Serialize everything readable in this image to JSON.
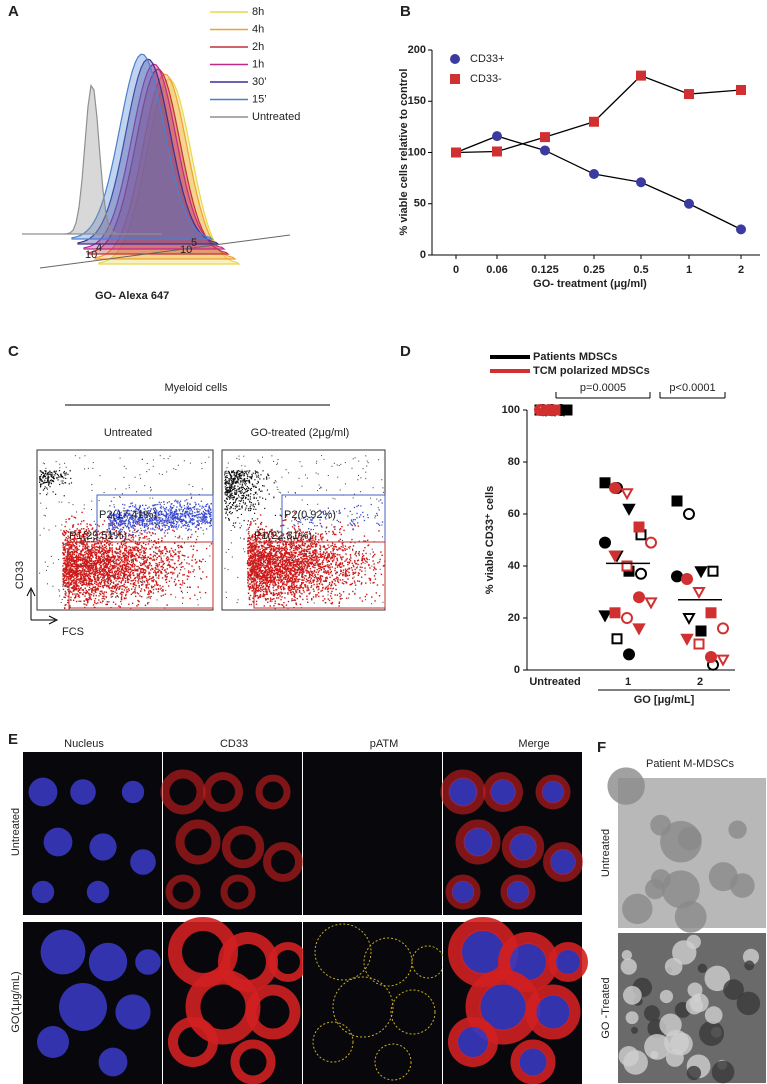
{
  "panels": {
    "A": {
      "letter": "A",
      "xlabel": "GO- Alexa 647",
      "xtick_a": "10",
      "xtick_a_exp": "4",
      "xtick_b": "10",
      "xtick_b_exp": "5",
      "legend": [
        {
          "name": "8h",
          "color": "#e8d84a"
        },
        {
          "name": "4h",
          "color": "#f0a030"
        },
        {
          "name": "2h",
          "color": "#c0303a"
        },
        {
          "name": "1h",
          "color": "#c0288a"
        },
        {
          "name": "30’",
          "color": "#3a3090"
        },
        {
          "name": "15’",
          "color": "#4a80d0"
        },
        {
          "name": "Untreated",
          "color": "#909090"
        }
      ]
    },
    "B": {
      "letter": "B"
    },
    "C": {
      "letter": "C",
      "title": "Myeloid cells",
      "left": "Untreated",
      "right": "GO-treated (2μg/ml)",
      "ylabel": "CD33",
      "xlabel": "FCS",
      "gates": [
        "P2(17.41%)",
        "P1(29.51%)",
        "P2(0.92%)",
        "P1(22.81%)"
      ]
    },
    "D": {
      "letter": "D"
    },
    "E": {
      "letter": "E",
      "columns": [
        "Nucleus",
        "CD33",
        "pATM",
        "Merge"
      ],
      "rows": [
        "Untreated",
        "GO(1μg/mL)"
      ]
    },
    "F": {
      "letter": "F",
      "title": "Patient M-MDSCs",
      "rows": [
        "Untreated",
        "GO -Treated"
      ]
    }
  },
  "chart_data": [
    {
      "type": "line",
      "ylabel": "% viable cells relative to control",
      "xlabel": "GO- treatment (μg/ml)",
      "categories": [
        "0",
        "0.06",
        "0.125",
        "0.25",
        "0.5",
        "1",
        "2"
      ],
      "series": [
        {
          "name": "CD33+",
          "color": "#3a3aa0",
          "marker": "circle",
          "values": [
            100,
            116,
            102,
            79,
            71,
            50,
            25
          ]
        },
        {
          "name": "CD33-",
          "color": "#d03030",
          "marker": "square",
          "values": [
            100,
            101,
            115,
            130,
            175,
            157,
            161
          ]
        }
      ],
      "ylim": [
        0,
        200
      ],
      "yticks": [
        0,
        50,
        100,
        150,
        200
      ]
    },
    {
      "type": "dot",
      "ylabel": "% viable CD33⁺ cells",
      "xlabel": "GO [μg/mL]",
      "categories": [
        "Untreated",
        "1",
        "2"
      ],
      "series": [
        {
          "name": "Patients MDSCs",
          "color": "#000000",
          "values": [
            [
              100,
              100,
              100,
              100,
              100,
              100,
              100,
              100,
              100,
              100
            ],
            [
              72,
              70,
              62,
              52,
              49,
              44,
              38,
              37,
              21,
              12,
              6
            ],
            [
              65,
              60,
              38,
              38,
              36,
              20,
              15,
              2
            ]
          ]
        },
        {
          "name": "TCM polarized MDSCs",
          "color": "#d03030",
          "values": [
            [
              100,
              100,
              100,
              100,
              100,
              100
            ],
            [
              70,
              68,
              55,
              49,
              44,
              40,
              28,
              26,
              22,
              20,
              16
            ],
            [
              35,
              30,
              22,
              16,
              12,
              10,
              5,
              4
            ]
          ]
        }
      ],
      "means": [
        null,
        41,
        27
      ],
      "annotations": [
        "p=0.0005",
        "p<0.0001"
      ],
      "ylim": [
        0,
        100
      ],
      "yticks": [
        0,
        20,
        40,
        60,
        80,
        100
      ]
    }
  ]
}
